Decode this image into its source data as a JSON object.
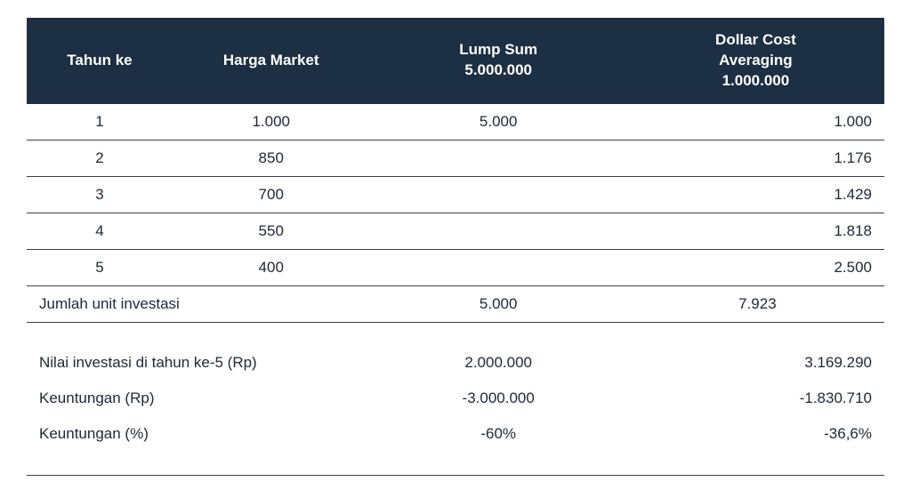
{
  "styling": {
    "header_bg": "#1d2f42",
    "header_fg": "#ffffff",
    "body_fg": "#202a38",
    "row_border": "#3a3f47",
    "neg_color": "#d72a2a",
    "font_size_body": 17,
    "font_size_header": 17,
    "col_widths_pct": [
      17,
      23,
      30,
      30
    ]
  },
  "header": {
    "col1": "Tahun ke",
    "col2": "Harga Market",
    "col3_line1": "Lump Sum",
    "col3_line2": "5.000.000",
    "col4_line1": "Dollar Cost",
    "col4_line2": "Averaging",
    "col4_line3": "1.000.000"
  },
  "rows": [
    {
      "year": "1",
      "price": "1.000",
      "lump": "5.000",
      "dca": "1.000"
    },
    {
      "year": "2",
      "price": "850",
      "lump": "",
      "dca": "1.176"
    },
    {
      "year": "3",
      "price": "700",
      "lump": "",
      "dca": "1.429"
    },
    {
      "year": "4",
      "price": "550",
      "lump": "",
      "dca": "1.818"
    },
    {
      "year": "5",
      "price": "400",
      "lump": "",
      "dca": "2.500"
    }
  ],
  "total": {
    "label": "Jumlah unit investasi",
    "lump": "5.000",
    "dca": "7.923"
  },
  "summary": {
    "value_label": "Nilai investasi di tahun ke-5 (Rp)",
    "value_lump": "2.000.000",
    "value_dca": "3.169.290",
    "profit_label": "Keuntungan (Rp)",
    "profit_lump": "-3.000.000",
    "profit_dca": "-1.830.710",
    "pct_label": "Keuntungan (%)",
    "pct_lump": "-60%",
    "pct_dca": "-36,6%"
  }
}
